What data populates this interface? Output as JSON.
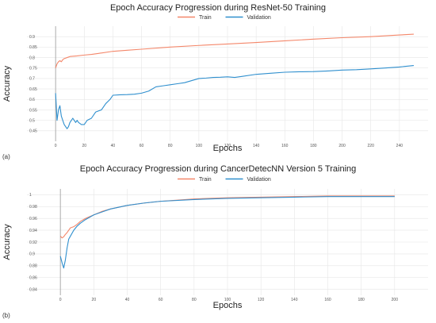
{
  "chart_data": [
    {
      "type": "line",
      "panel_label": "(a)",
      "title": "Epoch Accuracy Progression during ResNet-50 Training",
      "xlabel": "Epochs",
      "ylabel": "Accuracy",
      "xlim": [
        -20,
        260
      ],
      "ylim": [
        0.4,
        0.95
      ],
      "x_ticks": [
        0,
        20,
        40,
        60,
        80,
        100,
        120,
        140,
        160,
        180,
        200,
        220,
        240
      ],
      "y_ticks": [
        0.45,
        0.5,
        0.55,
        0.6,
        0.65,
        0.7,
        0.75,
        0.8,
        0.85,
        0.9
      ],
      "x_tick_labels": [
        "0",
        "20",
        "40",
        "60",
        "80",
        "100",
        "120",
        "140",
        "160",
        "180",
        "200",
        "220",
        "240"
      ],
      "y_tick_labels": [
        "0.45",
        "0.5",
        "0.55",
        "0.6",
        "0.65",
        "0.7",
        "0.75",
        "0.8",
        "0.85",
        "0.9"
      ],
      "grid": true,
      "legend_position": "top-center",
      "series": [
        {
          "name": "Train",
          "color": "#f4876a",
          "x": [
            0,
            1,
            2,
            3,
            4,
            5,
            6,
            8,
            10,
            15,
            20,
            25,
            30,
            40,
            50,
            60,
            80,
            100,
            120,
            140,
            160,
            180,
            200,
            220,
            240,
            250
          ],
          "y": [
            0.75,
            0.77,
            0.78,
            0.785,
            0.78,
            0.79,
            0.795,
            0.8,
            0.805,
            0.808,
            0.812,
            0.815,
            0.82,
            0.83,
            0.835,
            0.84,
            0.85,
            0.858,
            0.865,
            0.872,
            0.88,
            0.888,
            0.895,
            0.9,
            0.908,
            0.912
          ]
        },
        {
          "name": "Validation",
          "color": "#2f8fce",
          "x": [
            0,
            1,
            2,
            3,
            4,
            5,
            6,
            7,
            8,
            9,
            10,
            11,
            12,
            13,
            14,
            15,
            16,
            18,
            20,
            22,
            25,
            28,
            30,
            32,
            35,
            38,
            40,
            45,
            50,
            55,
            60,
            65,
            70,
            75,
            80,
            85,
            90,
            95,
            100,
            105,
            110,
            115,
            120,
            125,
            130,
            140,
            150,
            160,
            170,
            180,
            190,
            200,
            210,
            220,
            230,
            240,
            250
          ],
          "y": [
            0.63,
            0.5,
            0.55,
            0.57,
            0.52,
            0.5,
            0.48,
            0.47,
            0.46,
            0.47,
            0.49,
            0.5,
            0.51,
            0.5,
            0.49,
            0.5,
            0.49,
            0.48,
            0.48,
            0.5,
            0.51,
            0.54,
            0.545,
            0.55,
            0.58,
            0.6,
            0.62,
            0.622,
            0.623,
            0.625,
            0.63,
            0.64,
            0.66,
            0.665,
            0.67,
            0.675,
            0.68,
            0.69,
            0.7,
            0.702,
            0.705,
            0.706,
            0.708,
            0.705,
            0.71,
            0.72,
            0.725,
            0.73,
            0.732,
            0.733,
            0.736,
            0.74,
            0.742,
            0.746,
            0.75,
            0.755,
            0.762
          ]
        }
      ]
    },
    {
      "type": "line",
      "panel_label": "(b)",
      "title": "Epoch Accuracy Progression during CancerDetecNN Version 5 Training",
      "xlabel": "Epochs",
      "ylabel": "Accuracy",
      "xlim": [
        -20,
        220
      ],
      "ylim": [
        0.83,
        1.01
      ],
      "x_ticks": [
        0,
        20,
        40,
        60,
        80,
        100,
        120,
        140,
        160,
        180,
        200
      ],
      "y_ticks": [
        0.84,
        0.86,
        0.88,
        0.9,
        0.92,
        0.94,
        0.96,
        0.98,
        1
      ],
      "x_tick_labels": [
        "0",
        "20",
        "40",
        "60",
        "80",
        "100",
        "120",
        "140",
        "160",
        "180",
        "200"
      ],
      "y_tick_labels": [
        "0.84",
        "0.86",
        "0.88",
        "0.9",
        "0.92",
        "0.94",
        "0.96",
        "0.98",
        "1"
      ],
      "grid": true,
      "legend_position": "top-center",
      "series": [
        {
          "name": "Train",
          "color": "#f4876a",
          "x": [
            0,
            1,
            2,
            3,
            4,
            5,
            6,
            8,
            10,
            12,
            15,
            20,
            25,
            30,
            40,
            50,
            60,
            80,
            100,
            120,
            140,
            160,
            180,
            200
          ],
          "y": [
            0.93,
            0.927,
            0.929,
            0.933,
            0.936,
            0.94,
            0.944,
            0.946,
            0.95,
            0.955,
            0.96,
            0.966,
            0.972,
            0.976,
            0.982,
            0.986,
            0.989,
            0.993,
            0.995,
            0.996,
            0.997,
            0.998,
            0.998,
            0.998
          ]
        },
        {
          "name": "Validation",
          "color": "#2f8fce",
          "x": [
            0,
            1,
            2,
            3,
            4,
            5,
            6,
            8,
            10,
            12,
            15,
            20,
            25,
            30,
            40,
            50,
            60,
            80,
            100,
            120,
            140,
            160,
            180,
            200
          ],
          "y": [
            0.896,
            0.885,
            0.876,
            0.89,
            0.91,
            0.925,
            0.93,
            0.94,
            0.947,
            0.952,
            0.958,
            0.966,
            0.971,
            0.976,
            0.982,
            0.986,
            0.989,
            0.992,
            0.994,
            0.995,
            0.996,
            0.997,
            0.997,
            0.997
          ]
        }
      ]
    }
  ]
}
